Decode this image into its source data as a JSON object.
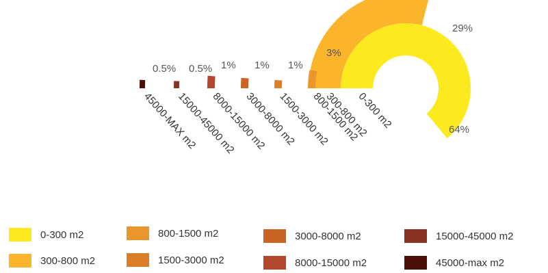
{
  "chart_data": {
    "type": "radial-bar",
    "categories": [
      "0-300 m2",
      "300-800 m2",
      "800-1500 m2",
      "1500-3000 m2",
      "3000-8000 m2",
      "8000-15000 m2",
      "15000-45000 m2",
      "45000-MAX m2"
    ],
    "values": [
      64,
      29,
      3,
      1,
      1,
      1,
      0.5,
      0.5
    ],
    "value_labels": [
      "64%",
      "29%",
      "3%",
      "1%",
      "1%",
      "1%",
      "0.5%",
      "0.5%"
    ],
    "colors": [
      "#FCEA1E",
      "#FBB52C",
      "#E9962D",
      "#DA7F28",
      "#C96425",
      "#B5472C",
      "#8A3320",
      "#4A0F06"
    ],
    "legend_labels": [
      "0-300 m2",
      "300-800 m2",
      "800-1500 m2",
      "1500-3000 m2",
      "3000-8000 m2",
      "8000-15000 m2",
      "15000-45000 m2",
      "45000-max m2"
    ],
    "legend_position": "bottom"
  }
}
